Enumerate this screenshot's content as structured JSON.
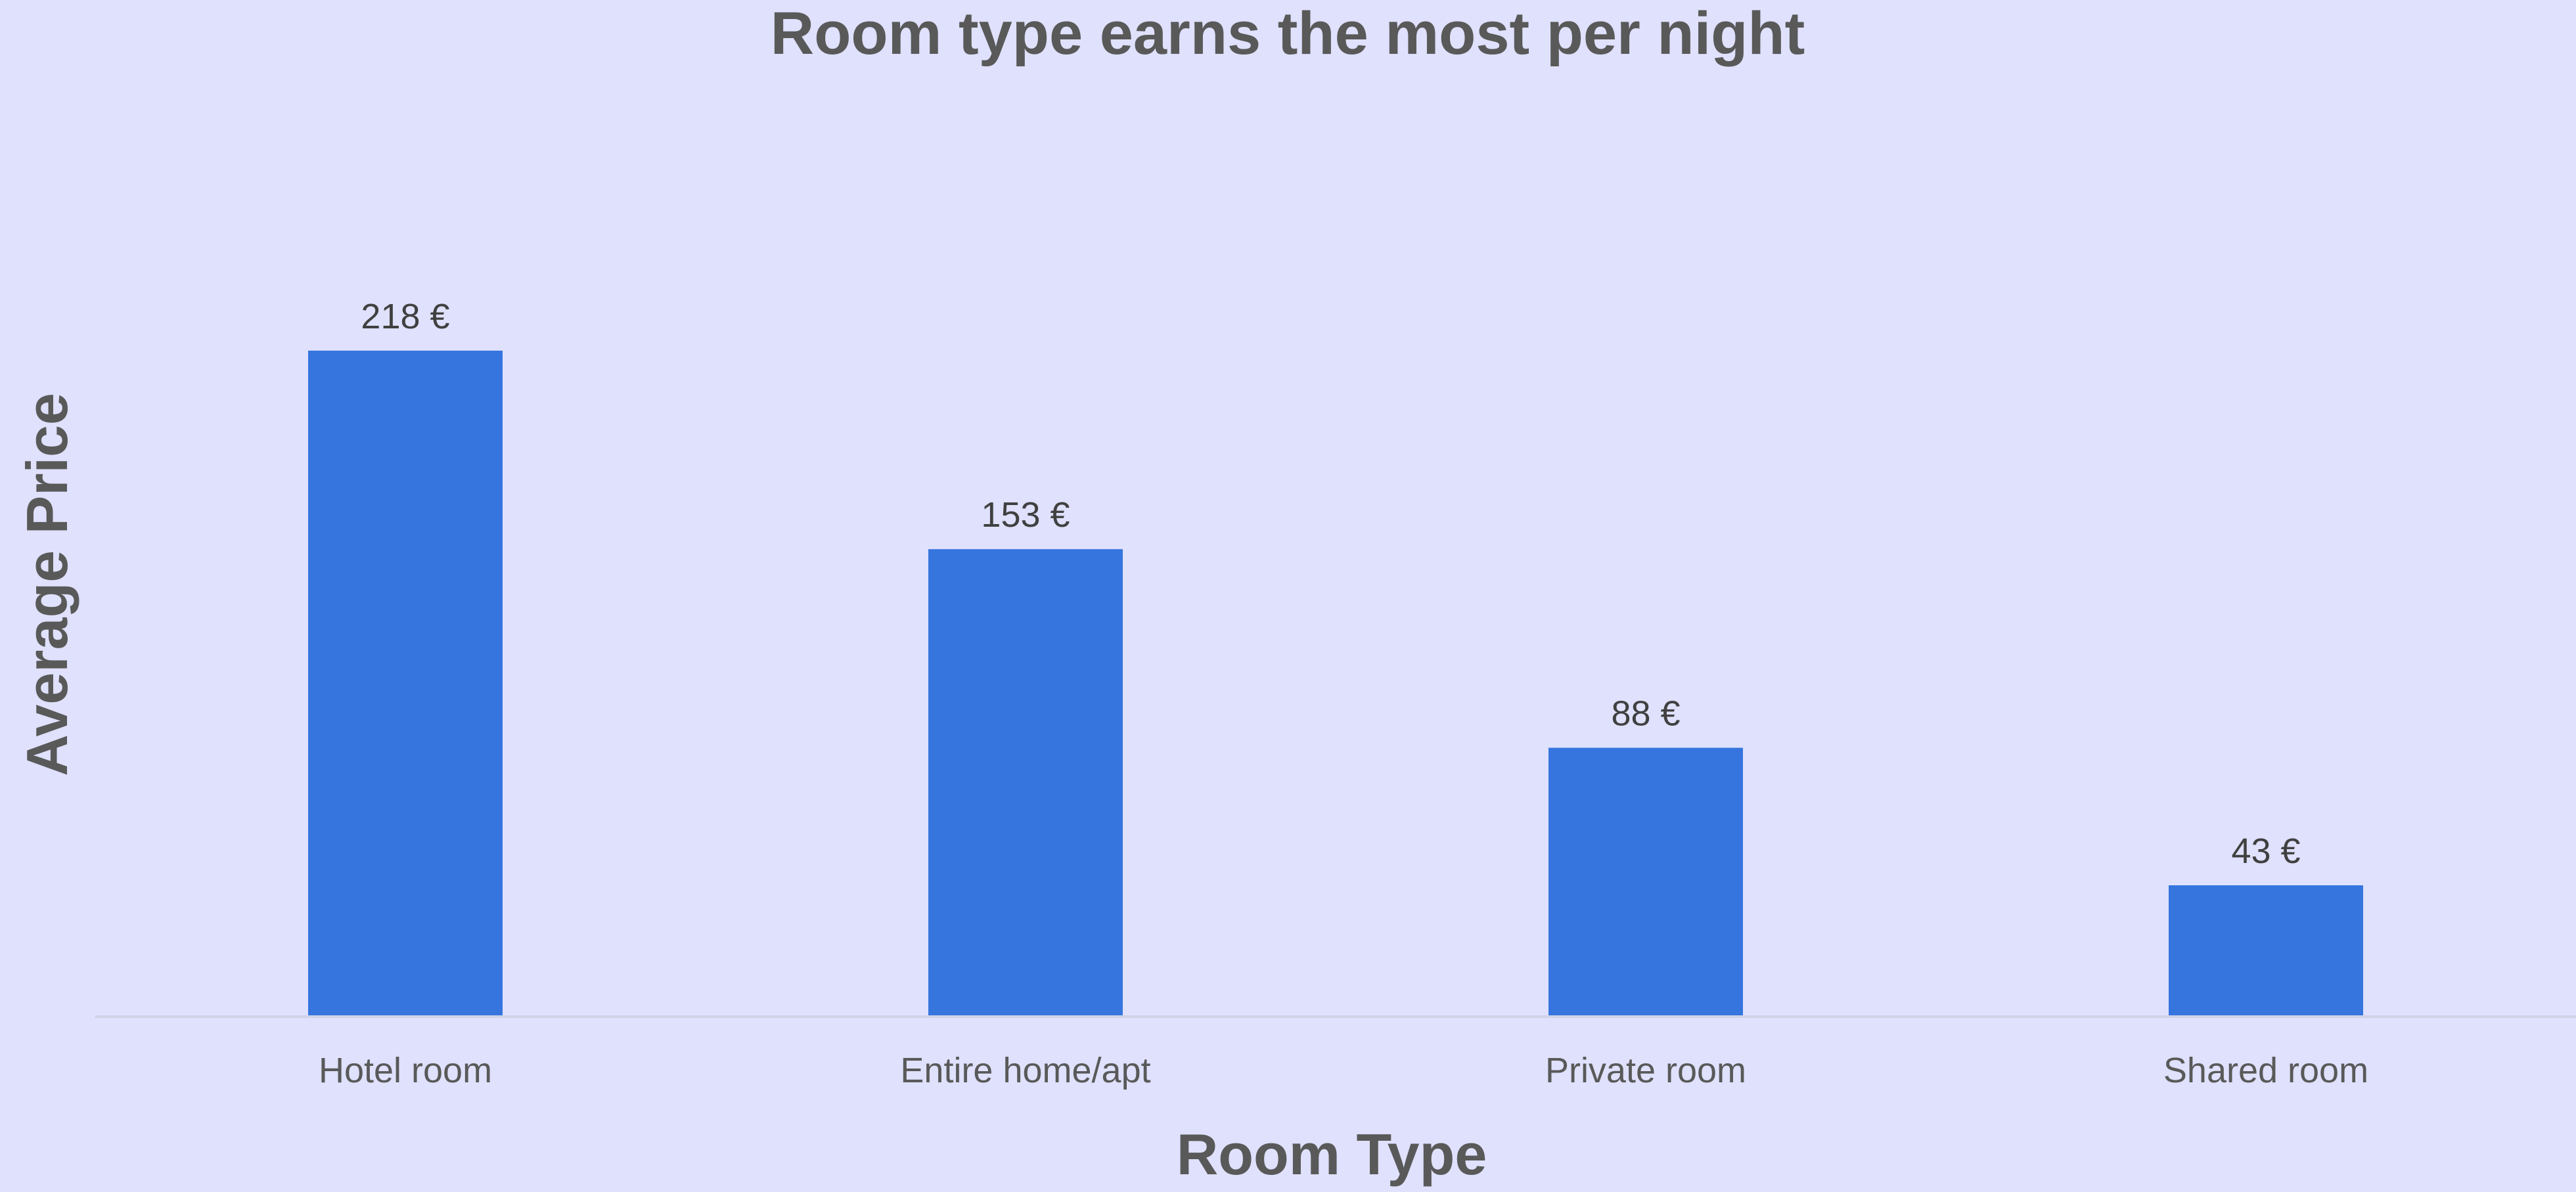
{
  "chart_data": {
    "type": "bar",
    "title": "Room type earns the most per night",
    "xlabel": "Room Type",
    "ylabel": "Average Price",
    "categories": [
      "Hotel room",
      "Entire home/apt",
      "Private room",
      "Shared room"
    ],
    "values": [
      218,
      153,
      88,
      43
    ],
    "data_labels": [
      "218 €",
      "153 €",
      "88 €",
      "43 €"
    ],
    "ylim": [
      0,
      250
    ],
    "grid": false,
    "legend": "none",
    "y_axis_visible": false,
    "colors": {
      "background": "#DFE1FD",
      "bar": "#3675DE",
      "axis_line": "#D0D2E6",
      "text": "#595959",
      "data_label": "#404040"
    }
  }
}
